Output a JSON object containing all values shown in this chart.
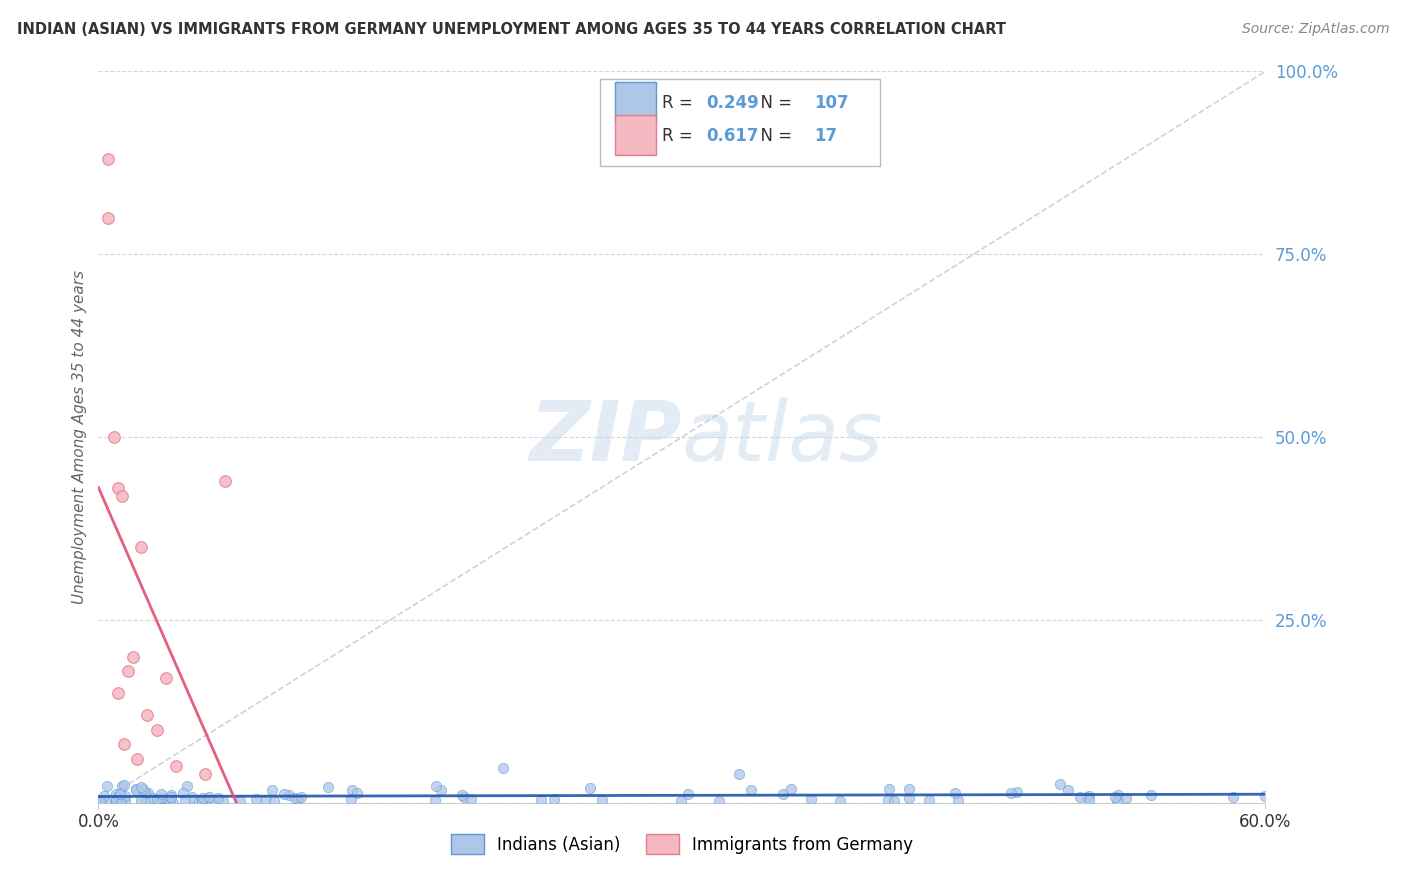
{
  "title": "INDIAN (ASIAN) VS IMMIGRANTS FROM GERMANY UNEMPLOYMENT AMONG AGES 35 TO 44 YEARS CORRELATION CHART",
  "source": "Source: ZipAtlas.com",
  "ylabel": "Unemployment Among Ages 35 to 44 years",
  "xlim": [
    0.0,
    0.6
  ],
  "ylim": [
    0.0,
    1.0
  ],
  "xtick_vals": [
    0.0,
    0.6
  ],
  "xticklabels": [
    "0.0%",
    "60.0%"
  ],
  "ytick_vals": [
    0.0,
    0.25,
    0.5,
    0.75,
    1.0
  ],
  "yticklabels": [
    "",
    "25.0%",
    "50.0%",
    "75.0%",
    "100.0%"
  ],
  "blue_fill": "#AEC6E8",
  "blue_edge": "#5B9BD5",
  "pink_fill": "#F4B8C1",
  "pink_edge": "#E87A8F",
  "trend_blue_color": "#2255AA",
  "trend_pink_color": "#E05070",
  "ref_line_color": "#C0C0C0",
  "watermark_color": "#C8D8EC",
  "legend_R_blue": "0.249",
  "legend_N_blue": "107",
  "legend_R_pink": "0.617",
  "legend_N_pink": "17",
  "legend_label_blue": "Indians (Asian)",
  "legend_label_pink": "Immigrants from Germany",
  "background_color": "#FFFFFF",
  "grid_color": "#CCCCCC",
  "ytick_color": "#5B9BD5",
  "text_color": "#333333",
  "pink_x": [
    0.005,
    0.005,
    0.008,
    0.01,
    0.01,
    0.012,
    0.013,
    0.015,
    0.018,
    0.02,
    0.022,
    0.025,
    0.03,
    0.035,
    0.04,
    0.055,
    0.065
  ],
  "pink_y": [
    0.88,
    0.8,
    0.5,
    0.43,
    0.15,
    0.42,
    0.08,
    0.18,
    0.2,
    0.06,
    0.35,
    0.12,
    0.1,
    0.17,
    0.05,
    0.04,
    0.44
  ]
}
